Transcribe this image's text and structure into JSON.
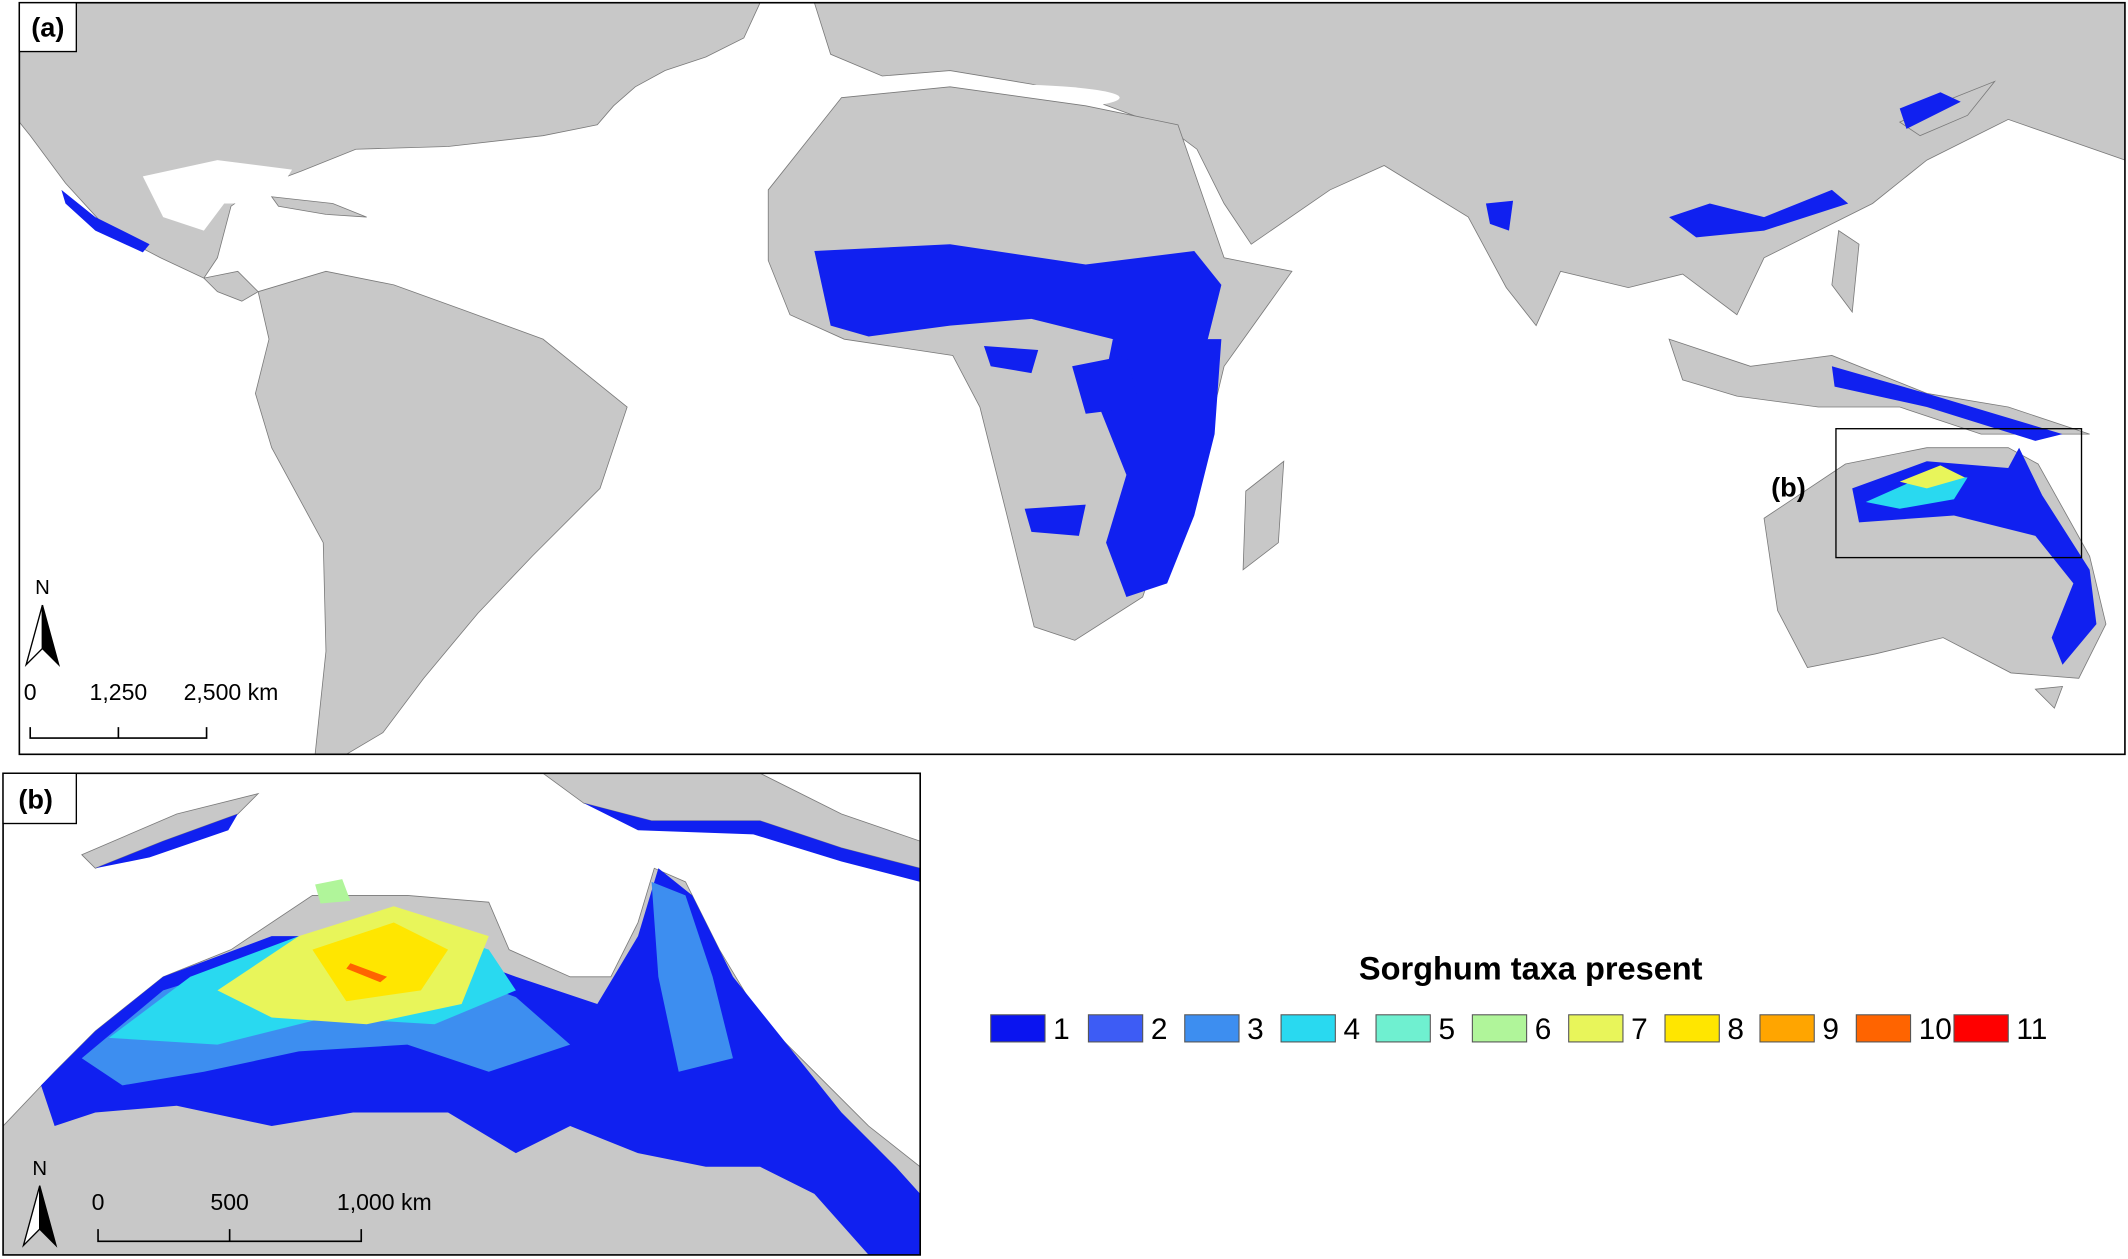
{
  "panels": [
    {
      "label": "(a)",
      "north": "N",
      "scale_bar": [
        "0",
        "1,250",
        "2,500 km"
      ],
      "inset_label": "(b)"
    },
    {
      "label": "(b)",
      "north": "N",
      "scale_bar": [
        "0",
        "500",
        "1,000 km"
      ]
    }
  ],
  "legend": {
    "title": "Sorghum taxa present",
    "items": [
      {
        "label": "1",
        "color": "#0a14f0"
      },
      {
        "label": "2",
        "color": "#3d5cf5"
      },
      {
        "label": "3",
        "color": "#3d8ef0"
      },
      {
        "label": "4",
        "color": "#29d9f0"
      },
      {
        "label": "5",
        "color": "#6ff0d0"
      },
      {
        "label": "6",
        "color": "#b0f59a"
      },
      {
        "label": "7",
        "color": "#e8f55a"
      },
      {
        "label": "8",
        "color": "#ffe600"
      },
      {
        "label": "9",
        "color": "#ffa500"
      },
      {
        "label": "10",
        "color": "#ff6400"
      },
      {
        "label": "11",
        "color": "#ff0000"
      }
    ]
  }
}
